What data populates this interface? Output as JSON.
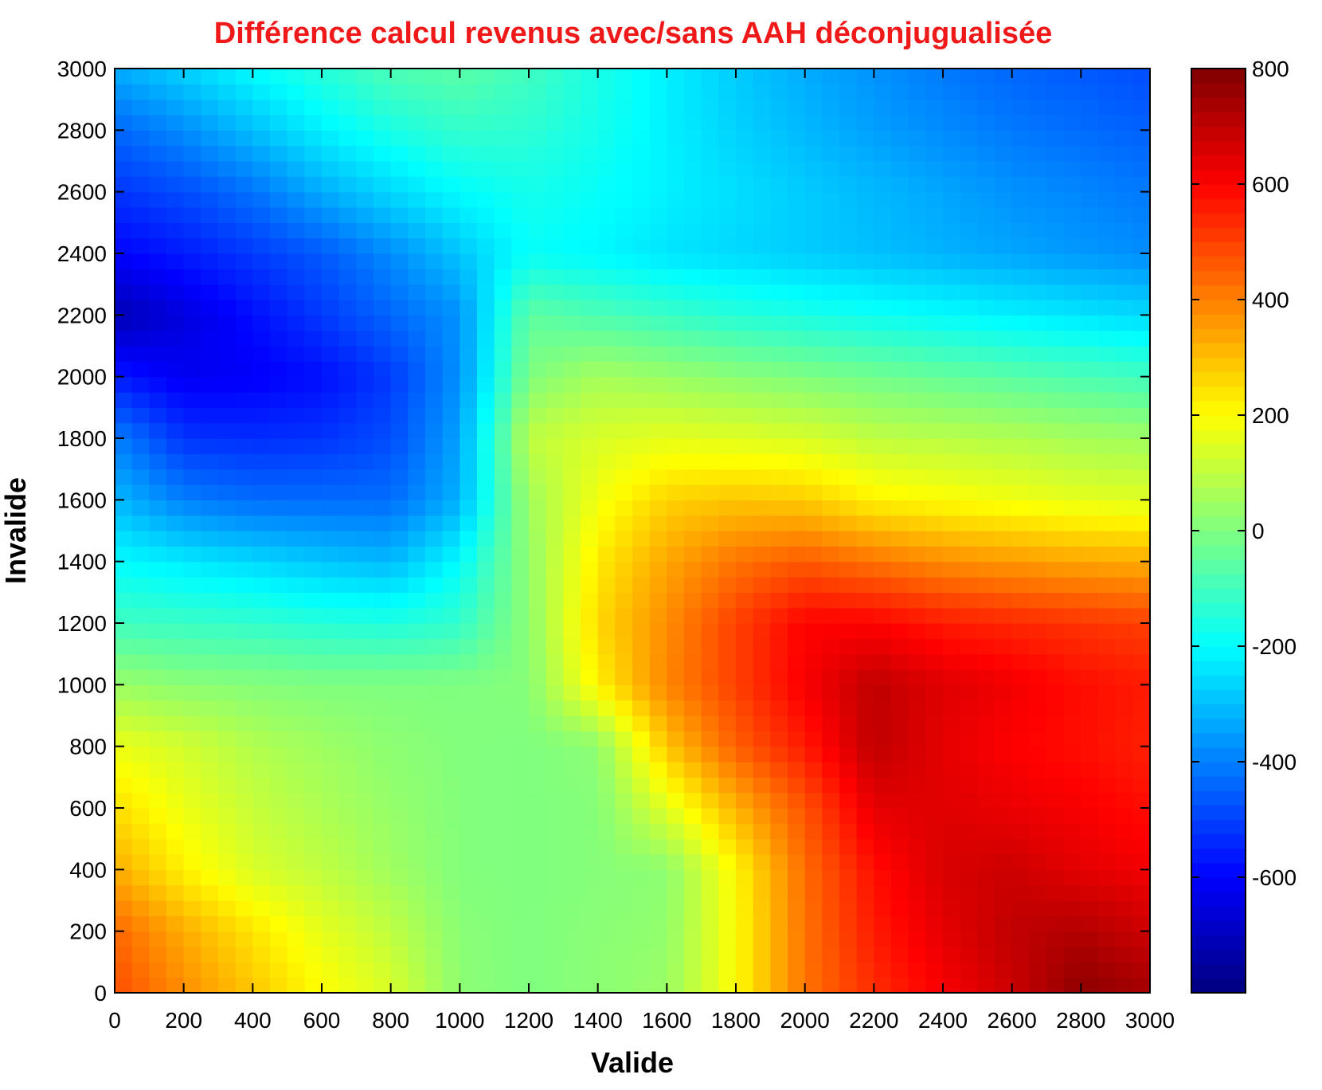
{
  "chart_data": {
    "type": "heatmap",
    "title": "Différence calcul revenus avec/sans AAH déconjugualisée",
    "xlabel": "Valide",
    "ylabel": "Invalide",
    "xlim": [
      0,
      3000
    ],
    "ylim": [
      0,
      3000
    ],
    "x_ticks": [
      0,
      200,
      400,
      600,
      800,
      1000,
      1200,
      1400,
      1600,
      1800,
      2000,
      2200,
      2400,
      2600,
      2800,
      3000
    ],
    "y_ticks": [
      0,
      200,
      400,
      600,
      800,
      1000,
      1200,
      1400,
      1600,
      1800,
      2000,
      2200,
      2400,
      2600,
      2800,
      3000
    ],
    "x_tick_labels": [
      "0",
      "200",
      "400",
      "600",
      "800",
      "1000",
      "1200",
      "1400",
      "1600",
      "1800",
      "2000",
      "2200",
      "2400",
      "2600",
      "2800",
      "3000"
    ],
    "y_tick_labels": [
      "0",
      "200",
      "400",
      "600",
      "800",
      "1000",
      "1200",
      "1400",
      "1600",
      "1800",
      "2000",
      "2200",
      "2400",
      "2600",
      "2800",
      "3000"
    ],
    "colormap": "jet",
    "colorbar": {
      "range": [
        -800,
        800
      ],
      "ticks": [
        800,
        600,
        400,
        200,
        0,
        -200,
        -400,
        -600
      ],
      "tick_labels": [
        "800",
        "600",
        "400",
        "200",
        "0",
        "-200",
        "-400",
        "-600"
      ]
    },
    "grid_x": [
      0,
      200,
      400,
      600,
      800,
      1000,
      1200,
      1400,
      1600,
      1800,
      2000,
      2200,
      2400,
      2600,
      2800,
      3000
    ],
    "grid_y": [
      0,
      200,
      400,
      600,
      800,
      1000,
      1200,
      1400,
      1600,
      1800,
      2000,
      2200,
      2400,
      2600,
      2800,
      3000
    ],
    "z": [
      [
        480,
        380,
        290,
        200,
        140,
        20,
        0,
        20,
        40,
        200,
        420,
        530,
        610,
        680,
        780,
        740
      ],
      [
        440,
        330,
        240,
        160,
        100,
        15,
        0,
        15,
        30,
        200,
        420,
        560,
        640,
        700,
        720,
        680
      ],
      [
        330,
        220,
        140,
        100,
        50,
        5,
        0,
        10,
        20,
        210,
        430,
        580,
        660,
        680,
        640,
        620
      ],
      [
        250,
        170,
        110,
        70,
        35,
        5,
        0,
        10,
        150,
        320,
        470,
        640,
        650,
        630,
        610,
        580
      ],
      [
        170,
        130,
        80,
        50,
        20,
        5,
        0,
        20,
        290,
        450,
        560,
        700,
        640,
        600,
        580,
        550
      ],
      [
        40,
        20,
        10,
        0,
        0,
        0,
        10,
        220,
        390,
        500,
        610,
        700,
        650,
        620,
        580,
        560
      ],
      [
        -100,
        -110,
        -120,
        -140,
        -150,
        -120,
        20,
        260,
        380,
        500,
        600,
        600,
        560,
        540,
        520,
        500
      ],
      [
        -200,
        -230,
        -260,
        -290,
        -310,
        -200,
        30,
        230,
        340,
        420,
        460,
        420,
        380,
        360,
        340,
        330
      ],
      [
        -310,
        -400,
        -430,
        -430,
        -430,
        -320,
        50,
        180,
        270,
        290,
        280,
        220,
        200,
        180,
        160,
        150
      ],
      [
        -400,
        -520,
        -530,
        -520,
        -480,
        -340,
        100,
        140,
        160,
        150,
        140,
        100,
        90,
        80,
        60,
        50
      ],
      [
        -560,
        -620,
        -610,
        -580,
        -510,
        -370,
        0,
        60,
        40,
        20,
        0,
        -20,
        -40,
        -60,
        -80,
        -100
      ],
      [
        -720,
        -650,
        -580,
        -510,
        -440,
        -370,
        -50,
        -80,
        -110,
        -140,
        -160,
        -180,
        -200,
        -220,
        -240,
        -260
      ],
      [
        -600,
        -560,
        -510,
        -460,
        -380,
        -290,
        -190,
        -210,
        -240,
        -260,
        -280,
        -300,
        -320,
        -340,
        -360,
        -380
      ],
      [
        -520,
        -480,
        -420,
        -330,
        -260,
        -200,
        -170,
        -190,
        -220,
        -250,
        -280,
        -310,
        -340,
        -370,
        -390,
        -410
      ],
      [
        -440,
        -380,
        -300,
        -220,
        -160,
        -120,
        -130,
        -170,
        -220,
        -270,
        -310,
        -350,
        -380,
        -410,
        -430,
        -450
      ],
      [
        -330,
        -270,
        -200,
        -140,
        -80,
        -60,
        -100,
        -160,
        -220,
        -280,
        -330,
        -370,
        -410,
        -440,
        -460,
        -480
      ]
    ]
  }
}
